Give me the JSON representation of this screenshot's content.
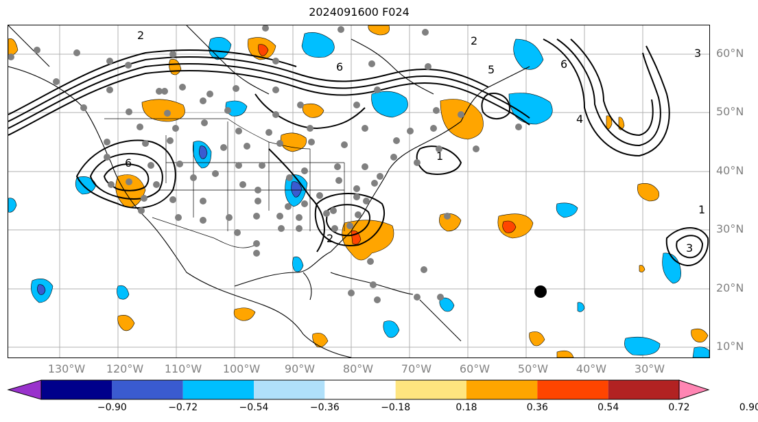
{
  "title": "2024091600 F024",
  "lat_labels": [
    "60°N",
    "50°N",
    "40°N",
    "30°N",
    "20°N",
    "10°N"
  ],
  "lon_labels": [
    "130°W",
    "120°W",
    "110°W",
    "100°W",
    "90°W",
    "80°W",
    "70°W",
    "60°W",
    "50°W",
    "40°W",
    "30°W"
  ],
  "contour_labels": [
    "2",
    "6",
    "5",
    "6",
    "3",
    "4",
    "1",
    "6",
    "2",
    "1",
    "2",
    "3"
  ],
  "colorbar": {
    "ticks": [
      "−0.90",
      "−0.72",
      "−0.54",
      "−0.36",
      "−0.18",
      "0.18",
      "0.36",
      "0.54",
      "0.72",
      "0.90"
    ],
    "colors": [
      "#9932cc",
      "#00008b",
      "#3a5bd0",
      "#00bfff",
      "#b0e0fa",
      "#ffffff",
      "#ffe57f",
      "#ffa500",
      "#ff4500",
      "#b22222",
      "#ff85b3"
    ]
  },
  "colors": {
    "neg_fill": "#00bfff",
    "neg_strong": "#3a5bd0",
    "pos_fill": "#ffa500",
    "pos_strong": "#ff4500",
    "station_dot": "#808080",
    "grid": "#b0b0b0",
    "label_gray": "#808080"
  }
}
